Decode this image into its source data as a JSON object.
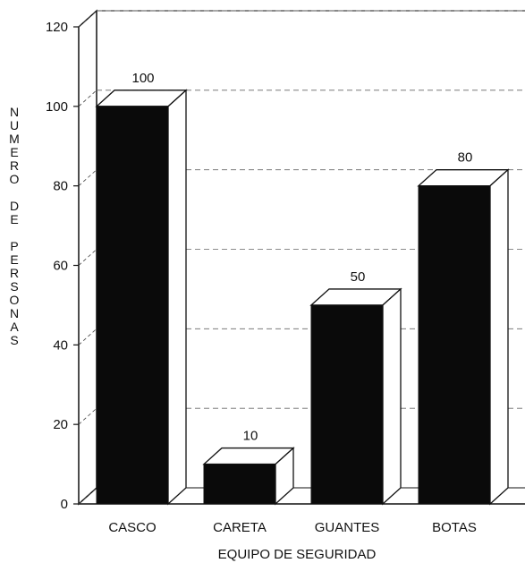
{
  "chart_data": {
    "type": "bar",
    "categories": [
      "CASCO",
      "CARETA",
      "GUANTES",
      "BOTAS"
    ],
    "values": [
      100,
      10,
      50,
      80
    ],
    "data_labels": [
      "100",
      "10",
      "50",
      "80"
    ],
    "title": "",
    "xlabel": "EQUIPO DE SEGURIDAD",
    "ylabel": "NUMERO DE PERSONAS",
    "ylim": [
      0,
      120
    ],
    "yticks": [
      "0",
      "20",
      "40",
      "60",
      "80",
      "100",
      "120"
    ],
    "grid": true,
    "style": "3d",
    "bar_color": "#0a0a0a",
    "bar_side_color": "#ffffff"
  }
}
